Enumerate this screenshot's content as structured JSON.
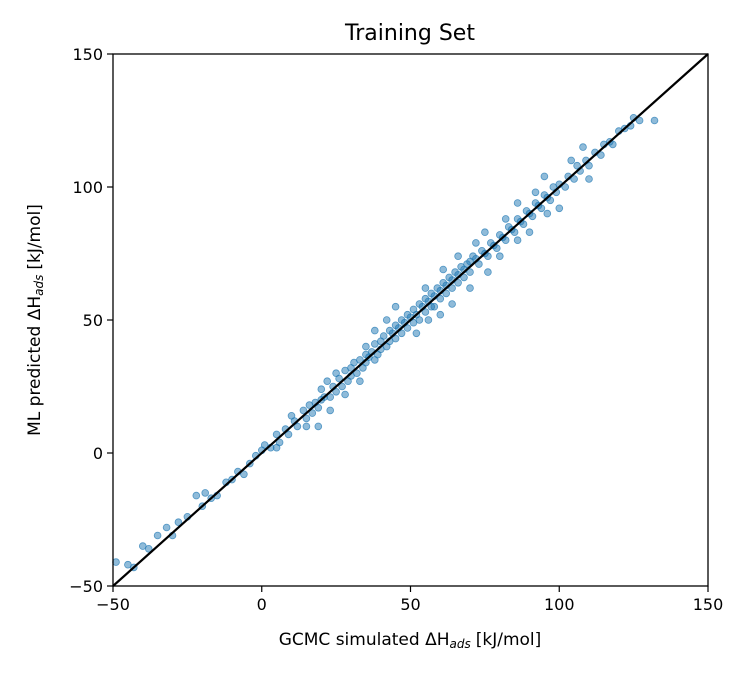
{
  "chart_data": {
    "type": "scatter",
    "title": "Training Set",
    "xlabel_prefix": "GCMC simulated ΔH",
    "ylabel_prefix": "ML predicted ΔH",
    "label_subscript": "ads",
    "label_unit": "[kJ/mol]",
    "xlim": [
      -50,
      150
    ],
    "ylim": [
      -50,
      150
    ],
    "xticks": [
      "−50",
      "0",
      "50",
      "100",
      "150"
    ],
    "yticks": [
      "−50",
      "0",
      "50",
      "100",
      "150"
    ],
    "xtick_values": [
      -50,
      0,
      50,
      100,
      150
    ],
    "ytick_values": [
      -50,
      0,
      50,
      100,
      150
    ],
    "grid": false,
    "reference_line": {
      "from": [
        -50,
        -50
      ],
      "to": [
        150,
        150
      ],
      "color": "#000000"
    },
    "marker_color": "#1f77b4",
    "marker_opacity": 0.5,
    "series": [
      {
        "points": [
          [
            -49,
            -41
          ],
          [
            -45,
            -42
          ],
          [
            -43,
            -43
          ],
          [
            -40,
            -35
          ],
          [
            -38,
            -36
          ],
          [
            -35,
            -31
          ],
          [
            -32,
            -28
          ],
          [
            -30,
            -31
          ],
          [
            -28,
            -26
          ],
          [
            -25,
            -24
          ],
          [
            -22,
            -16
          ],
          [
            -20,
            -20
          ],
          [
            -19,
            -15
          ],
          [
            -17,
            -17
          ],
          [
            -15,
            -16
          ],
          [
            -12,
            -11
          ],
          [
            -10,
            -10
          ],
          [
            -8,
            -7
          ],
          [
            -6,
            -8
          ],
          [
            -4,
            -4
          ],
          [
            -2,
            -1
          ],
          [
            0,
            1
          ],
          [
            1,
            3
          ],
          [
            3,
            2
          ],
          [
            5,
            7
          ],
          [
            6,
            4
          ],
          [
            8,
            9
          ],
          [
            9,
            7
          ],
          [
            11,
            12
          ],
          [
            12,
            10
          ],
          [
            14,
            16
          ],
          [
            15,
            13
          ],
          [
            16,
            18
          ],
          [
            17,
            15
          ],
          [
            18,
            19
          ],
          [
            19,
            17
          ],
          [
            20,
            24
          ],
          [
            20,
            20
          ],
          [
            21,
            21
          ],
          [
            22,
            27
          ],
          [
            23,
            21
          ],
          [
            24,
            25
          ],
          [
            25,
            23
          ],
          [
            26,
            28
          ],
          [
            27,
            25
          ],
          [
            28,
            31
          ],
          [
            29,
            27
          ],
          [
            30,
            32
          ],
          [
            30,
            29
          ],
          [
            31,
            34
          ],
          [
            32,
            30
          ],
          [
            33,
            35
          ],
          [
            34,
            32
          ],
          [
            35,
            37
          ],
          [
            35,
            34
          ],
          [
            36,
            36
          ],
          [
            37,
            38
          ],
          [
            38,
            35
          ],
          [
            38,
            41
          ],
          [
            39,
            37
          ],
          [
            40,
            42
          ],
          [
            40,
            39
          ],
          [
            41,
            44
          ],
          [
            42,
            40
          ],
          [
            43,
            46
          ],
          [
            43,
            42
          ],
          [
            44,
            45
          ],
          [
            45,
            43
          ],
          [
            45,
            48
          ],
          [
            46,
            47
          ],
          [
            47,
            45
          ],
          [
            47,
            50
          ],
          [
            48,
            49
          ],
          [
            49,
            47
          ],
          [
            49,
            52
          ],
          [
            50,
            51
          ],
          [
            51,
            49
          ],
          [
            51,
            54
          ],
          [
            52,
            52
          ],
          [
            53,
            50
          ],
          [
            53,
            56
          ],
          [
            54,
            55
          ],
          [
            55,
            53
          ],
          [
            55,
            58
          ],
          [
            56,
            57
          ],
          [
            57,
            55
          ],
          [
            57,
            60
          ],
          [
            58,
            59
          ],
          [
            58,
            55
          ],
          [
            59,
            62
          ],
          [
            60,
            61
          ],
          [
            60,
            58
          ],
          [
            61,
            64
          ],
          [
            62,
            63
          ],
          [
            62,
            60
          ],
          [
            63,
            66
          ],
          [
            64,
            65
          ],
          [
            64,
            62
          ],
          [
            65,
            68
          ],
          [
            66,
            67
          ],
          [
            66,
            64
          ],
          [
            67,
            70
          ],
          [
            68,
            69
          ],
          [
            68,
            66
          ],
          [
            69,
            71
          ],
          [
            70,
            72
          ],
          [
            70,
            68
          ],
          [
            71,
            74
          ],
          [
            72,
            73
          ],
          [
            73,
            71
          ],
          [
            74,
            76
          ],
          [
            75,
            75
          ],
          [
            76,
            74
          ],
          [
            77,
            79
          ],
          [
            78,
            78
          ],
          [
            79,
            77
          ],
          [
            80,
            82
          ],
          [
            81,
            81
          ],
          [
            82,
            80
          ],
          [
            83,
            85
          ],
          [
            84,
            84
          ],
          [
            85,
            83
          ],
          [
            86,
            88
          ],
          [
            87,
            87
          ],
          [
            88,
            86
          ],
          [
            89,
            91
          ],
          [
            90,
            90
          ],
          [
            91,
            89
          ],
          [
            92,
            94
          ],
          [
            93,
            93
          ],
          [
            94,
            92
          ],
          [
            95,
            97
          ],
          [
            96,
            96
          ],
          [
            97,
            95
          ],
          [
            98,
            100
          ],
          [
            99,
            98
          ],
          [
            100,
            101
          ],
          [
            102,
            100
          ],
          [
            103,
            104
          ],
          [
            105,
            103
          ],
          [
            106,
            108
          ],
          [
            107,
            106
          ],
          [
            109,
            110
          ],
          [
            110,
            108
          ],
          [
            112,
            113
          ],
          [
            114,
            112
          ],
          [
            115,
            116
          ],
          [
            117,
            117
          ],
          [
            118,
            116
          ],
          [
            120,
            121
          ],
          [
            122,
            122
          ],
          [
            124,
            123
          ],
          [
            125,
            126
          ],
          [
            127,
            125
          ],
          [
            132,
            125
          ],
          [
            19,
            10
          ],
          [
            23,
            16
          ],
          [
            28,
            22
          ],
          [
            33,
            27
          ],
          [
            38,
            46
          ],
          [
            45,
            55
          ],
          [
            52,
            45
          ],
          [
            55,
            62
          ],
          [
            60,
            52
          ],
          [
            66,
            74
          ],
          [
            70,
            62
          ],
          [
            75,
            83
          ],
          [
            80,
            74
          ],
          [
            86,
            94
          ],
          [
            90,
            83
          ],
          [
            95,
            104
          ],
          [
            100,
            92
          ],
          [
            108,
            115
          ],
          [
            110,
            103
          ],
          [
            42,
            50
          ],
          [
            35,
            40
          ],
          [
            25,
            30
          ],
          [
            15,
            10
          ],
          [
            10,
            14
          ],
          [
            5,
            2
          ],
          [
            56,
            50
          ],
          [
            61,
            69
          ],
          [
            64,
            56
          ],
          [
            72,
            79
          ],
          [
            76,
            68
          ],
          [
            82,
            88
          ],
          [
            86,
            80
          ],
          [
            92,
            98
          ],
          [
            96,
            90
          ],
          [
            104,
            110
          ]
        ]
      }
    ]
  }
}
